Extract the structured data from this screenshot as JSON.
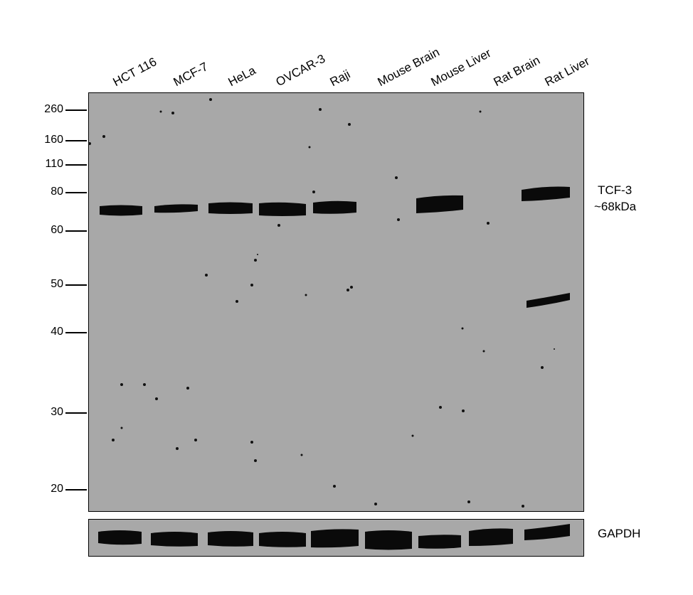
{
  "lanes": [
    "HCT 116",
    "MCF-7",
    "HeLa",
    "OVCAR-3",
    "Raji",
    "Mouse Brain",
    "Mouse Liver",
    "Rat Brain",
    "Rat Liver"
  ],
  "markers": [
    "260",
    "160",
    "110",
    "80",
    "60",
    "50",
    "40",
    "30",
    "20"
  ],
  "target": {
    "name": "TCF-3",
    "size": "~68kDa"
  },
  "loading_control": "GAPDH"
}
